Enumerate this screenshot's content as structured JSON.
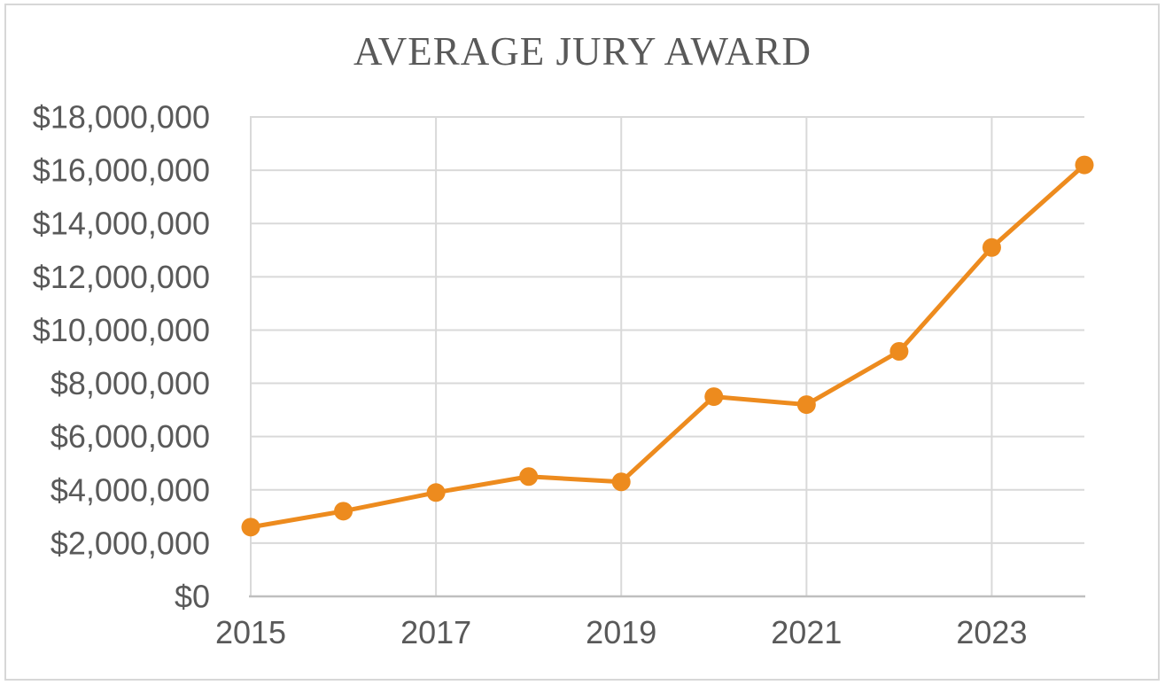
{
  "chart_data": {
    "type": "line",
    "title": "AVERAGE JURY AWARD",
    "categories": [
      2015,
      2016,
      2017,
      2018,
      2019,
      2020,
      2021,
      2022,
      2023,
      2024
    ],
    "series": [
      {
        "name": "Average Jury Award",
        "values": [
          2600000,
          3200000,
          3900000,
          4500000,
          4300000,
          7500000,
          7200000,
          9200000,
          13100000,
          16200000
        ]
      }
    ],
    "xlabel": "",
    "ylabel": "",
    "ylim": [
      0,
      18000000
    ],
    "y_tick_step": 2000000,
    "y_tick_labels": [
      "$0",
      "$2,000,000",
      "$4,000,000",
      "$6,000,000",
      "$8,000,000",
      "$10,000,000",
      "$12,000,000",
      "$14,000,000",
      "$16,000,000",
      "$18,000,000"
    ],
    "x_tick_labels": [
      "2015",
      "2017",
      "2019",
      "2021",
      "2023"
    ],
    "legend": "none",
    "grid": {
      "horizontal": true,
      "vertical_at_labeled_years_only": true
    },
    "colors": {
      "line": "#ED8B1E",
      "marker": "#ED8B1E",
      "gridline": "#D9D9D9",
      "axis_line": "#BFBFBF",
      "tick_text": "#595959",
      "title_text": "#595959",
      "frame_border": "#D7D7D7",
      "background": "#FFFFFF"
    }
  }
}
